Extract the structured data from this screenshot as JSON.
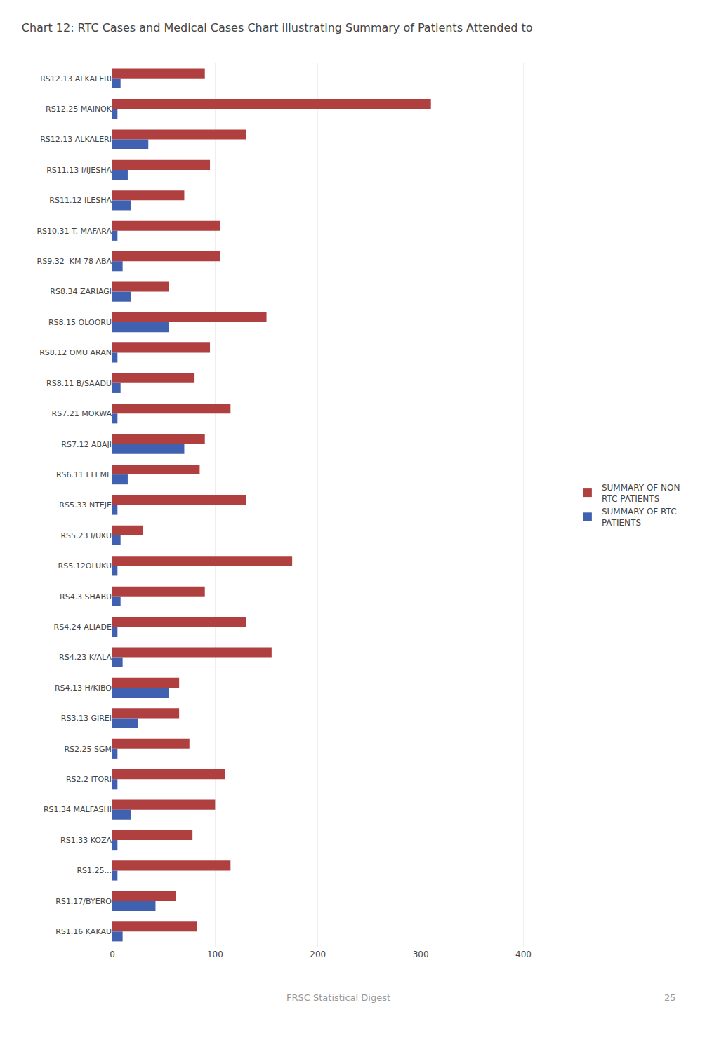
{
  "chart_data": {
    "type": "bar",
    "orientation": "horizontal",
    "title": "Chart 12: RTC Cases and Medical Cases Chart illustrating Summary of Patients Attended to",
    "categories": [
      "RS12.13 ALKALERI",
      "RS12.25 MAINOK",
      "RS12.13 ALKALERI",
      "RS11.13 I/IJESHA",
      "RS11.12 ILESHA",
      "RS10.31 T. MAFARA",
      "RS9.32  KM 78 ABA",
      "RS8.34 ZARIAGI",
      "RS8.15 OLOORU",
      "RS8.12 OMU ARAN",
      "RS8.11 B/SAADU",
      "RS7.21 MOKWA",
      "RS7.12 ABAJI",
      "RS6.11 ELEME",
      "RS5.33 NTEJE",
      "RS5.23 I/UKU",
      "RS5.12OLUKU",
      "RS4.3 SHABU",
      "RS4.24 ALIADE",
      "RS4.23 K/ALA",
      "RS4.13 H/KIBO",
      "RS3.13 GIREI",
      "RS2.25 SGM",
      "RS2.2 ITORI",
      "RS1.34 MALFASHI",
      "RS1.33 KOZA",
      "RS1.25...",
      "RS1.17/BYERO",
      "RS1.16 KAKAU"
    ],
    "series": [
      {
        "name": "SUMMARY OF NON\nRTC PATIENTS",
        "color": "#b04040",
        "values": [
          90,
          310,
          130,
          95,
          70,
          105,
          105,
          55,
          150,
          95,
          80,
          115,
          90,
          85,
          130,
          30,
          175,
          90,
          130,
          155,
          65,
          65,
          75,
          110,
          100,
          78,
          115,
          62,
          82
        ]
      },
      {
        "name": "SUMMARY OF RTC\nPATIENTS",
        "color": "#4060b0",
        "values": [
          8,
          5,
          35,
          15,
          18,
          5,
          10,
          18,
          55,
          5,
          8,
          5,
          70,
          15,
          5,
          8,
          5,
          8,
          5,
          10,
          55,
          25,
          5,
          5,
          18,
          5,
          5,
          42,
          10
        ]
      }
    ],
    "xlim": [
      0,
      440
    ],
    "xticks": [
      0,
      100,
      200,
      300,
      400
    ],
    "grid": true,
    "legend": "right",
    "annotations": [
      {
        "text": "FRSC Statistical Digest"
      },
      {
        "text": "25"
      }
    ]
  }
}
